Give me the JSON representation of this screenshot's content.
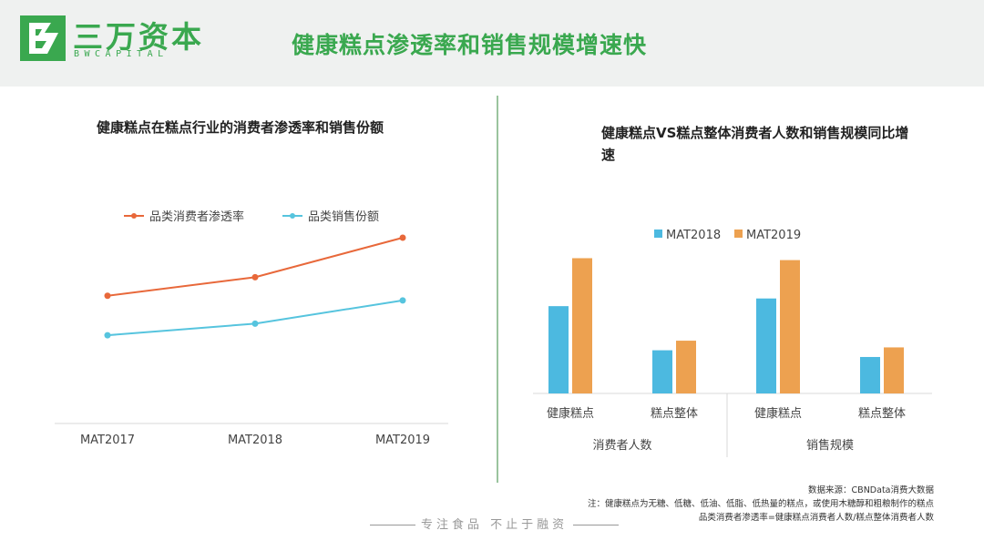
{
  "header": {
    "brand_cn": "三万资本",
    "brand_en": "BWCAPITAL",
    "title": "健康糕点渗透率和销售规模增速快"
  },
  "colors": {
    "green": "#3aa84f",
    "orange": "#e8683a",
    "teal": "#56c4de",
    "blue": "#4cb9e0",
    "gold": "#eda150"
  },
  "chart_data": [
    {
      "type": "line",
      "title": "健康糕点在糕点行业的消费者渗透率和销售份额",
      "categories": [
        "MAT2017",
        "MAT2018",
        "MAT2019"
      ],
      "series": [
        {
          "name": "品类消费者渗透率",
          "values": [
            0.55,
            0.63,
            0.8
          ]
        },
        {
          "name": "品类销售份额",
          "values": [
            0.38,
            0.43,
            0.53
          ]
        }
      ],
      "ylim": [
        0,
        1
      ],
      "legend": "top"
    },
    {
      "type": "bar",
      "title": "健康糕点VS糕点整体消费者人数和销售规模同比增速",
      "groups": [
        {
          "label": "消费者人数",
          "categories": [
            "健康糕点",
            "糕点整体"
          ]
        },
        {
          "label": "销售规模",
          "categories": [
            "健康糕点",
            "糕点整体"
          ]
        }
      ],
      "categories": [
        "健康糕点",
        "糕点整体",
        "健康糕点",
        "糕点整体"
      ],
      "series": [
        {
          "name": "MAT2018",
          "values": [
            0.91,
            0.45,
            0.99,
            0.38
          ]
        },
        {
          "name": "MAT2019",
          "values": [
            1.41,
            0.55,
            1.39,
            0.48
          ]
        }
      ],
      "ylim": [
        0,
        1.5
      ],
      "legend": "top"
    }
  ],
  "footer": {
    "source": "数据来源：CBNData消费大数据",
    "note1": "注：健康糕点为无糖、低糖、低油、低脂、低热量的糕点，或使用木糖醇和粗粮制作的糕点",
    "note2": "品类消费者渗透率=健康糕点消费者人数/糕点整体消费者人数",
    "slogan": "专注食品 不止于融资"
  }
}
